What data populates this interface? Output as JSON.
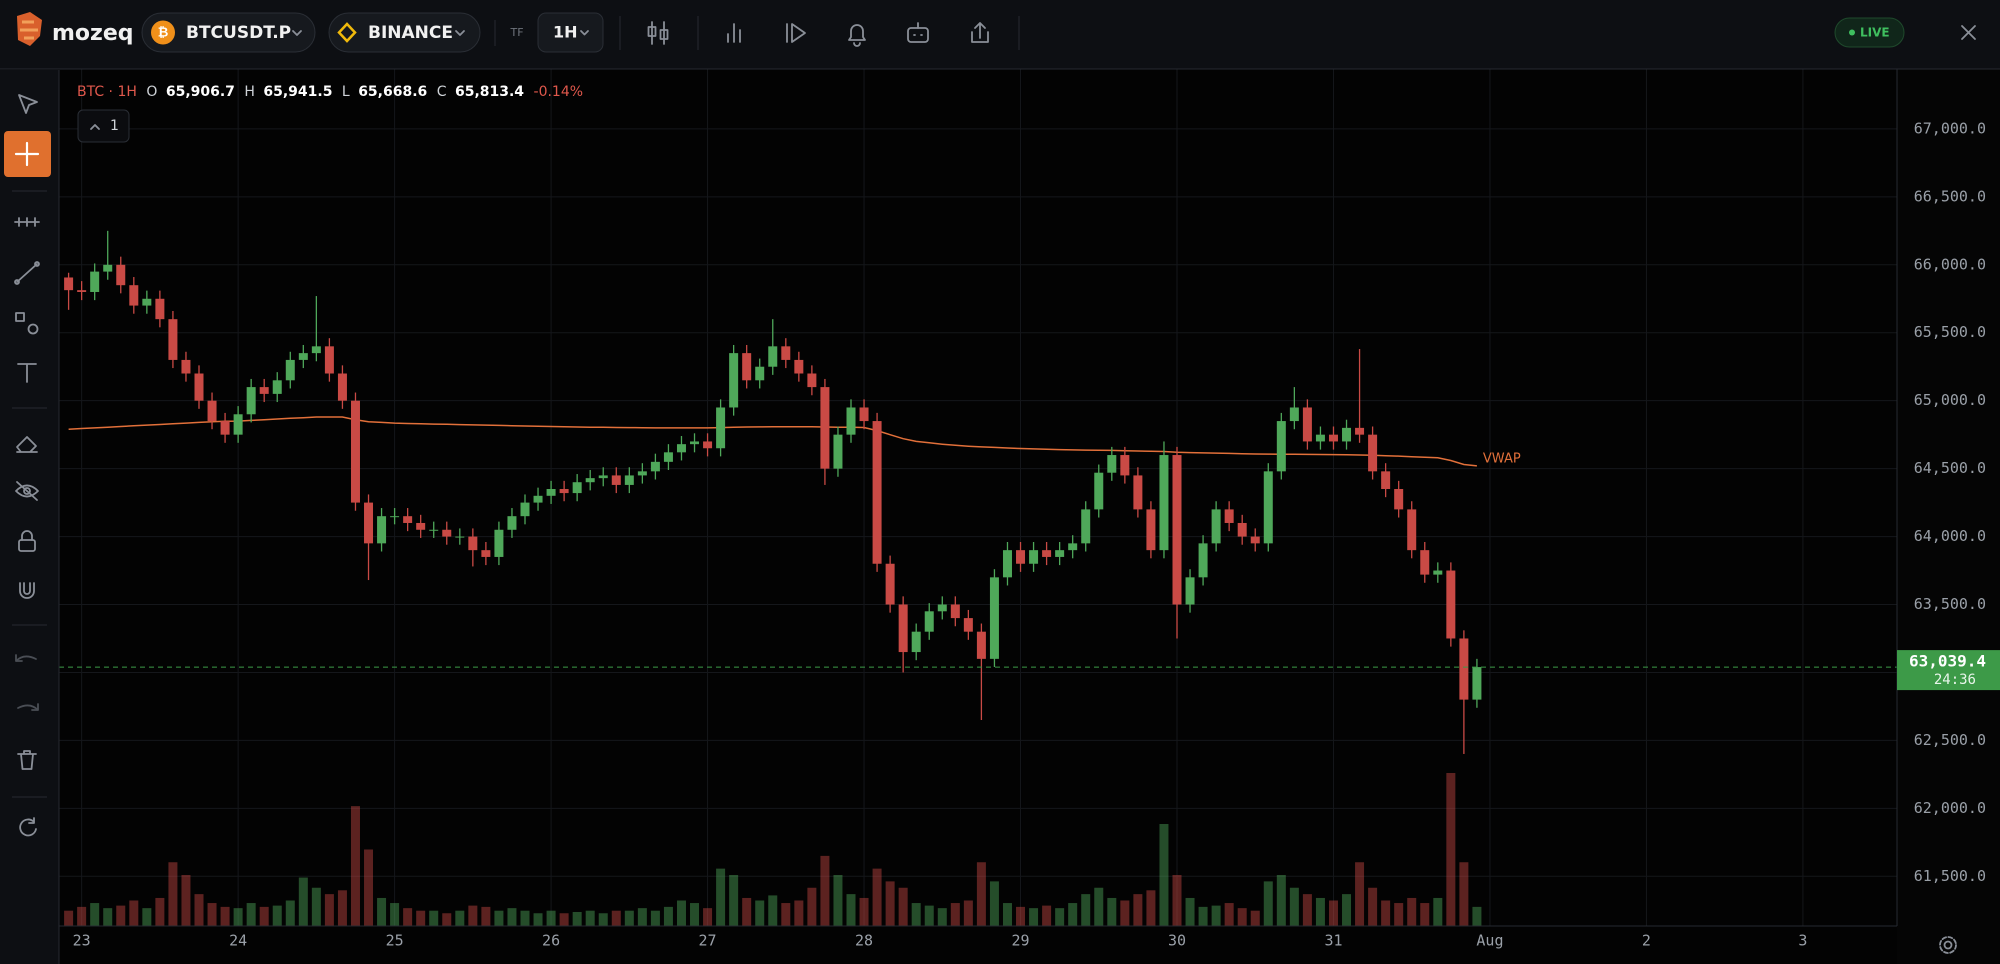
{
  "toolbar": {
    "brand": "mozeq",
    "symbol": "BTCUSDT.P",
    "exchange": "BINANCE",
    "tf_label": "TF",
    "timeframe": "1H",
    "status": "LIVE"
  },
  "legend_bar": {
    "title": "BTC · 1H",
    "o_label": "O",
    "open": "65,906.7",
    "h_label": "H",
    "high": "65,941.5",
    "l_label": "L",
    "low": "65,668.6",
    "c_label": "C",
    "close": "65,813.4",
    "change": "-0.14%"
  },
  "indicator_toggle": "1",
  "chart_data": {
    "type": "candlestick",
    "grid": true,
    "up_color": "#4fa85a",
    "down_color": "#c94a45",
    "categories": [
      null,
      "23",
      null,
      null,
      null,
      null,
      null,
      null,
      null,
      null,
      null,
      null,
      null,
      "24",
      null,
      null,
      null,
      null,
      null,
      null,
      null,
      null,
      null,
      null,
      null,
      "25",
      null,
      null,
      null,
      null,
      null,
      null,
      null,
      null,
      null,
      null,
      null,
      "26",
      null,
      null,
      null,
      null,
      null,
      null,
      null,
      null,
      null,
      null,
      null,
      "27",
      null,
      null,
      null,
      null,
      null,
      null,
      null,
      null,
      null,
      null,
      null,
      "28",
      null,
      null,
      null,
      null,
      null,
      null,
      null,
      null,
      null,
      null,
      null,
      "29",
      null,
      null,
      null,
      null,
      null,
      null,
      null,
      null,
      null,
      null,
      null,
      "30",
      null,
      null,
      null,
      null,
      null,
      null,
      null,
      null,
      null,
      null,
      null,
      "31",
      null,
      null,
      null,
      null,
      null,
      null,
      null,
      null,
      null,
      null,
      null,
      "Aug",
      null,
      null,
      null,
      null,
      null,
      null,
      null,
      null,
      null,
      null,
      null,
      "2",
      null,
      null,
      null,
      null,
      null,
      null,
      null,
      null,
      null,
      null,
      null,
      "3",
      null,
      null,
      null,
      null,
      null,
      null,
      null
    ],
    "candles": [
      [
        65906.7,
        65941.5,
        65668.6,
        65813.4
      ],
      [
        65813.4,
        65880,
        65740,
        65800
      ],
      [
        65800,
        66010,
        65740,
        65950
      ],
      [
        65950,
        66250,
        65890,
        66000
      ],
      [
        66000,
        66060,
        65790,
        65850
      ],
      [
        65850,
        65910,
        65640,
        65700
      ],
      [
        65700,
        65810,
        65640,
        65750
      ],
      [
        65750,
        65810,
        65540,
        65600
      ],
      [
        65600,
        65660,
        65240,
        65300
      ],
      [
        65300,
        65360,
        65140,
        65200
      ],
      [
        65200,
        65260,
        64940,
        65000
      ],
      [
        65000,
        65060,
        64790,
        64850
      ],
      [
        64850,
        64910,
        64690,
        64750
      ],
      [
        64750,
        64960,
        64690,
        64900
      ],
      [
        64900,
        65160,
        64840,
        65100
      ],
      [
        65100,
        65160,
        64990,
        65050
      ],
      [
        65050,
        65210,
        64990,
        65150
      ],
      [
        65150,
        65360,
        65090,
        65300
      ],
      [
        65300,
        65410,
        65240,
        65350
      ],
      [
        65350,
        65770,
        65290,
        65400
      ],
      [
        65400,
        65460,
        65140,
        65200
      ],
      [
        65200,
        65260,
        64940,
        65000
      ],
      [
        65000,
        65060,
        64190,
        64250
      ],
      [
        64250,
        64310,
        63680,
        63950
      ],
      [
        63950,
        64210,
        63890,
        64150
      ],
      [
        64150,
        64210,
        64090,
        64150
      ],
      [
        64150,
        64210,
        64040,
        64100
      ],
      [
        64100,
        64160,
        63990,
        64050
      ],
      [
        64050,
        64110,
        63990,
        64050
      ],
      [
        64050,
        64110,
        63940,
        64000
      ],
      [
        64000,
        64060,
        63940,
        64000
      ],
      [
        64000,
        64060,
        63780,
        63900
      ],
      [
        63900,
        63960,
        63790,
        63850
      ],
      [
        63850,
        64110,
        63790,
        64050
      ],
      [
        64050,
        64210,
        63990,
        64150
      ],
      [
        64150,
        64310,
        64090,
        64250
      ],
      [
        64250,
        64360,
        64190,
        64300
      ],
      [
        64300,
        64410,
        64240,
        64350
      ],
      [
        64350,
        64410,
        64260,
        64320
      ],
      [
        64320,
        64460,
        64260,
        64400
      ],
      [
        64400,
        64490,
        64340,
        64430
      ],
      [
        64430,
        64510,
        64370,
        64450
      ],
      [
        64450,
        64510,
        64320,
        64380
      ],
      [
        64380,
        64510,
        64320,
        64450
      ],
      [
        64450,
        64540,
        64390,
        64480
      ],
      [
        64480,
        64610,
        64420,
        64550
      ],
      [
        64550,
        64680,
        64490,
        64620
      ],
      [
        64620,
        64740,
        64560,
        64680
      ],
      [
        64680,
        64760,
        64620,
        64700
      ],
      [
        64700,
        64760,
        64590,
        64650
      ],
      [
        64650,
        65010,
        64590,
        64950
      ],
      [
        64950,
        65410,
        64890,
        65350
      ],
      [
        65350,
        65410,
        65090,
        65150
      ],
      [
        65150,
        65310,
        65090,
        65250
      ],
      [
        65250,
        65600,
        65190,
        65400
      ],
      [
        65400,
        65460,
        65240,
        65300
      ],
      [
        65300,
        65360,
        65140,
        65200
      ],
      [
        65200,
        65260,
        65040,
        65100
      ],
      [
        65100,
        65160,
        64380,
        64500
      ],
      [
        64500,
        64810,
        64440,
        64750
      ],
      [
        64750,
        65010,
        64690,
        64950
      ],
      [
        64950,
        65010,
        64790,
        64850
      ],
      [
        64850,
        64910,
        63740,
        63800
      ],
      [
        63800,
        63860,
        63440,
        63500
      ],
      [
        63500,
        63560,
        63000,
        63150
      ],
      [
        63150,
        63360,
        63090,
        63300
      ],
      [
        63300,
        63510,
        63240,
        63450
      ],
      [
        63450,
        63560,
        63390,
        63500
      ],
      [
        63500,
        63560,
        63340,
        63400
      ],
      [
        63400,
        63460,
        63240,
        63300
      ],
      [
        63300,
        63360,
        62650,
        63100
      ],
      [
        63100,
        63760,
        63040,
        63700
      ],
      [
        63700,
        63960,
        63640,
        63900
      ],
      [
        63900,
        63960,
        63740,
        63800
      ],
      [
        63800,
        63960,
        63740,
        63900
      ],
      [
        63900,
        63960,
        63790,
        63850
      ],
      [
        63850,
        63960,
        63790,
        63900
      ],
      [
        63900,
        64010,
        63840,
        63950
      ],
      [
        63950,
        64260,
        63890,
        64200
      ],
      [
        64200,
        64530,
        64140,
        64470
      ],
      [
        64470,
        64660,
        64410,
        64600
      ],
      [
        64600,
        64660,
        64390,
        64450
      ],
      [
        64450,
        64510,
        64140,
        64200
      ],
      [
        64200,
        64260,
        63840,
        63900
      ],
      [
        63900,
        64700,
        63840,
        64600
      ],
      [
        64600,
        64660,
        63250,
        63500
      ],
      [
        63500,
        63760,
        63440,
        63700
      ],
      [
        63700,
        64010,
        63640,
        63950
      ],
      [
        63950,
        64260,
        63890,
        64200
      ],
      [
        64200,
        64260,
        64040,
        64100
      ],
      [
        64100,
        64160,
        63940,
        64000
      ],
      [
        64000,
        64060,
        63890,
        63950
      ],
      [
        63950,
        64540,
        63890,
        64480
      ],
      [
        64480,
        64910,
        64420,
        64850
      ],
      [
        64850,
        65100,
        64790,
        64950
      ],
      [
        64950,
        65010,
        64640,
        64700
      ],
      [
        64700,
        64810,
        64640,
        64750
      ],
      [
        64750,
        64810,
        64640,
        64700
      ],
      [
        64700,
        64860,
        64640,
        64800
      ],
      [
        64800,
        65380,
        64690,
        64750
      ],
      [
        64750,
        64810,
        64420,
        64480
      ],
      [
        64480,
        64540,
        64290,
        64350
      ],
      [
        64350,
        64410,
        64140,
        64200
      ],
      [
        64200,
        64260,
        63840,
        63900
      ],
      [
        63900,
        63960,
        63660,
        63720
      ],
      [
        63720,
        63810,
        63660,
        63750
      ],
      [
        63750,
        63810,
        63190,
        63250
      ],
      [
        63250,
        63310,
        62400,
        62800
      ],
      [
        62800,
        63100,
        62740,
        63039.4
      ],
      null,
      null,
      null,
      null,
      null,
      null,
      null,
      null,
      null,
      null,
      null,
      null,
      null,
      null,
      null,
      null,
      null,
      null,
      null,
      null,
      null,
      null,
      null,
      null,
      null,
      null,
      null,
      null,
      null,
      null,
      null,
      null
    ],
    "volumes": [
      12,
      15,
      18,
      14,
      16,
      20,
      14,
      22,
      50,
      40,
      25,
      18,
      15,
      14,
      18,
      15,
      16,
      20,
      38,
      30,
      25,
      28,
      94,
      60,
      22,
      18,
      14,
      12,
      12,
      10,
      12,
      16,
      15,
      12,
      14,
      12,
      10,
      12,
      10,
      11,
      12,
      10,
      12,
      12,
      14,
      12,
      15,
      20,
      18,
      14,
      45,
      40,
      22,
      20,
      24,
      18,
      20,
      30,
      55,
      40,
      25,
      22,
      45,
      35,
      30,
      18,
      16,
      14,
      18,
      20,
      50,
      35,
      18,
      15,
      14,
      16,
      14,
      18,
      25,
      30,
      22,
      20,
      25,
      28,
      80,
      40,
      22,
      15,
      16,
      18,
      14,
      12,
      35,
      40,
      30,
      25,
      22,
      20,
      25,
      50,
      30,
      20,
      18,
      22,
      18,
      22,
      120,
      50,
      15,
      null,
      null,
      null,
      null,
      null,
      null,
      null,
      null,
      null,
      null,
      null,
      null,
      null,
      null,
      null,
      null,
      null,
      null,
      null,
      null,
      null,
      null,
      null,
      null,
      null,
      null,
      null,
      null,
      null,
      null,
      null,
      null
    ],
    "vwap": {
      "name": "VWAP",
      "color": "#e2703a",
      "values": [
        64790,
        64795,
        64800,
        64805,
        64810,
        64815,
        64820,
        64825,
        64830,
        64835,
        64840,
        64845,
        64848,
        64850,
        64855,
        64860,
        64865,
        64870,
        64875,
        64880,
        64880,
        64880,
        64860,
        64845,
        64840,
        64835,
        64832,
        64830,
        64828,
        64826,
        64824,
        64822,
        64820,
        64818,
        64816,
        64814,
        64812,
        64810,
        64808,
        64806,
        64805,
        64804,
        64803,
        64802,
        64801,
        64800,
        64800,
        64800,
        64800,
        64800,
        64802,
        64805,
        64806,
        64807,
        64808,
        64808,
        64808,
        64808,
        64806,
        64805,
        64804,
        64803,
        64780,
        64750,
        64720,
        64700,
        64690,
        64680,
        64672,
        64665,
        64660,
        64656,
        64652,
        64648,
        64645,
        64642,
        64640,
        64638,
        64636,
        64635,
        64634,
        64632,
        64630,
        64628,
        64626,
        64620,
        64618,
        64616,
        64614,
        64612,
        64610,
        64608,
        64607,
        64606,
        64606,
        64605,
        64604,
        64603,
        64602,
        64600,
        64598,
        64595,
        64592,
        64588,
        64584,
        64580,
        64560,
        64530,
        64520,
        null,
        null,
        null,
        null,
        null,
        null,
        null,
        null,
        null,
        null,
        null,
        null,
        null,
        null,
        null,
        null,
        null,
        null,
        null,
        null,
        null,
        null,
        null,
        null,
        null,
        null,
        null,
        null,
        null,
        null,
        null,
        null
      ]
    },
    "last_price": {
      "value": 63039.4,
      "label": "63,039.4",
      "countdown": "24:36",
      "color": "#3d9a48"
    },
    "ylim": [
      61134,
      67441
    ],
    "yticks": [
      {
        "value": 61500,
        "label": "61,500.0"
      },
      {
        "value": 62000,
        "label": "62,000.0"
      },
      {
        "value": 62500,
        "label": "62,500.0"
      },
      {
        "value": 63000,
        "label": "63,000.0"
      },
      {
        "value": 63500,
        "label": "63,500.0"
      },
      {
        "value": 64000,
        "label": "64,000.0"
      },
      {
        "value": 64500,
        "label": "64,500.0"
      },
      {
        "value": 65000,
        "label": "65,000.0"
      },
      {
        "value": 65500,
        "label": "65,500.0"
      },
      {
        "value": 66000,
        "label": "66,000.0"
      },
      {
        "value": 66500,
        "label": "66,500.0"
      },
      {
        "value": 67000,
        "label": "67,000.0"
      }
    ]
  }
}
